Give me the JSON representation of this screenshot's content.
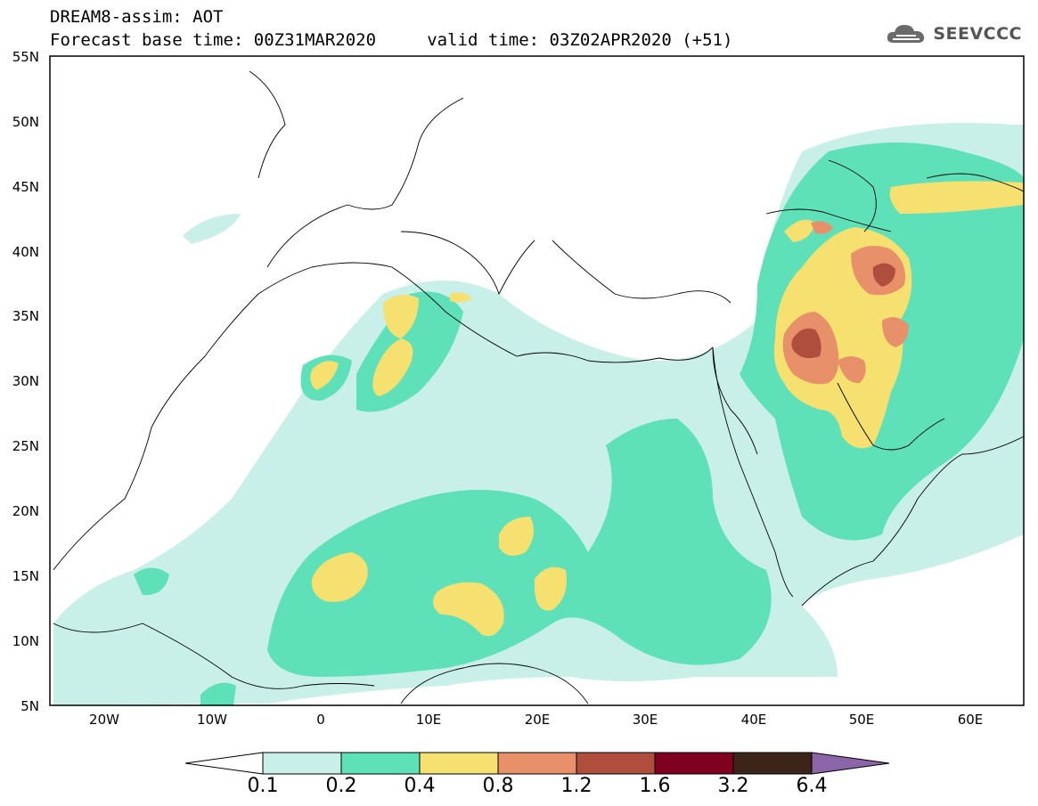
{
  "header": {
    "title": "DREAM8-assim: AOT",
    "subtitle": "Forecast base time: 00Z31MAR2020     valid time: 03Z02APR2020 (+51)",
    "logo_text": "SEEVCCC",
    "logo_icon": "cloud-icon"
  },
  "map": {
    "lat_labels": [
      "55N",
      "50N",
      "45N",
      "40N",
      "35N",
      "30N",
      "25N",
      "20N",
      "15N",
      "10N",
      "5N"
    ],
    "lon_labels": [
      "20W",
      "10W",
      "0",
      "10E",
      "20E",
      "30E",
      "40E",
      "50E",
      "60E"
    ],
    "lat_range": [
      5,
      55
    ],
    "lon_range": [
      -25,
      65
    ]
  },
  "colorbar": {
    "labels": [
      "0.1",
      "0.2",
      "0.4",
      "0.8",
      "1.2",
      "1.6",
      "3.2",
      "6.4"
    ],
    "colors": [
      "#ffffff",
      "#c8f0e8",
      "#5ee0b8",
      "#f5e070",
      "#e8906a",
      "#b04e3e",
      "#800020",
      "#3c2418",
      "#8c64a8"
    ]
  },
  "colors": {
    "c1": "#c8f0e8",
    "c2": "#5ee0b8",
    "c3": "#f5e070",
    "c4": "#e8906a",
    "c5": "#b04e3e"
  }
}
